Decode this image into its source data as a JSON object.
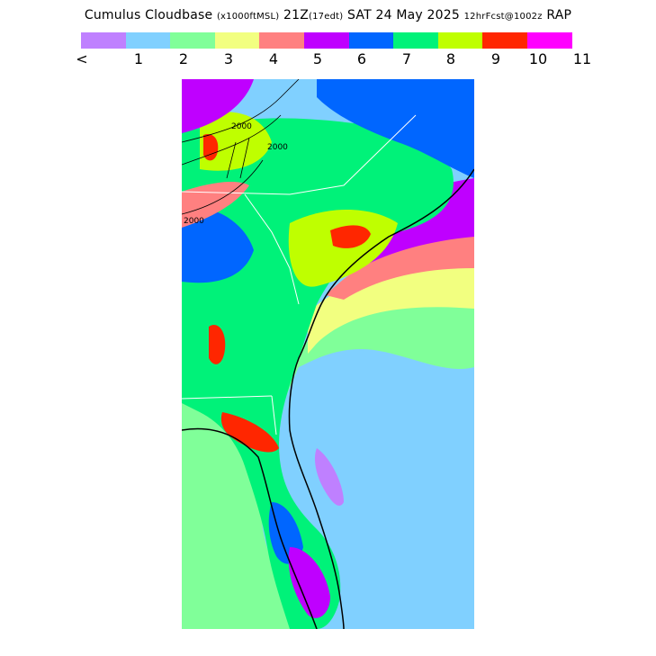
{
  "title": {
    "main": "Cumulus Cloudbase",
    "units": "(x1000ftMSL)",
    "time": "21Z",
    "local_time": "(17edt)",
    "date": "SAT 24 May 2025",
    "forecast": "12hrFcst@1002z",
    "model": "RAP"
  },
  "legend": {
    "colors": [
      "#bf80ff",
      "#80d0ff",
      "#80ff99",
      "#f2ff80",
      "#ff8080",
      "#bf00ff",
      "#0066ff",
      "#00f279",
      "#bfff00",
      "#ff2600",
      "#ff00ff"
    ],
    "ticks": [
      "<",
      "1",
      "2",
      "3",
      "4",
      "5",
      "6",
      "7",
      "8",
      "9",
      "10",
      "11"
    ]
  },
  "map": {
    "contour_labels": [
      "2000",
      "2000",
      "2000"
    ]
  }
}
